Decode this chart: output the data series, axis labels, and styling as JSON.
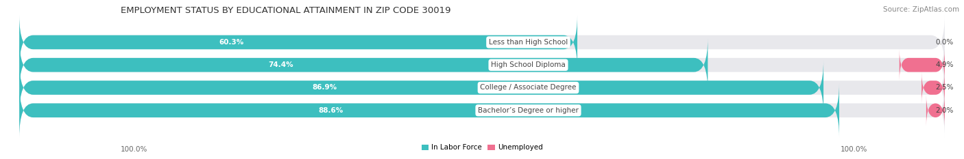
{
  "title": "EMPLOYMENT STATUS BY EDUCATIONAL ATTAINMENT IN ZIP CODE 30019",
  "source": "Source: ZipAtlas.com",
  "categories": [
    "Less than High School",
    "High School Diploma",
    "College / Associate Degree",
    "Bachelor’s Degree or higher"
  ],
  "in_labor_force": [
    60.3,
    74.4,
    86.9,
    88.6
  ],
  "unemployed": [
    0.0,
    4.9,
    2.5,
    2.0
  ],
  "color_labor": "#3dbfbf",
  "color_unemployed": "#f07090",
  "color_bg_bar": "#e8e8ec",
  "color_bg": "#ffffff",
  "bar_height": 0.62,
  "legend_labor": "In Labor Force",
  "legend_unemployed": "Unemployed",
  "xlim_left": 0,
  "xlim_right": 100,
  "x_left_label": "100.0%",
  "x_right_label": "100.0%",
  "title_fontsize": 9.5,
  "source_fontsize": 7.5,
  "bar_label_fontsize": 7.5,
  "category_fontsize": 7.5,
  "axis_label_fontsize": 7.5
}
